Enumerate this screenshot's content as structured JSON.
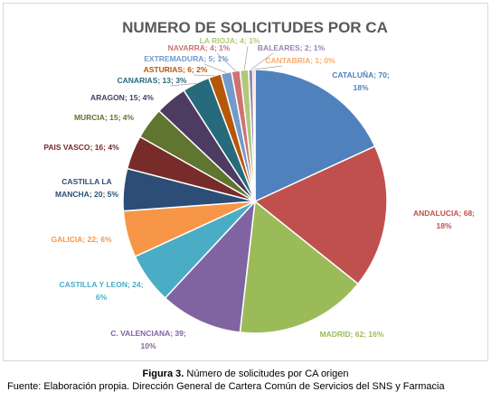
{
  "caption": {
    "figure_label": "Figura 3.",
    "figure_text": " Número de solicitudes por CA origen",
    "source": "Fuente: Elaboración propia. Dirección General de Cartera Común de Servicios del SNS y Farmacia"
  },
  "chart_data": {
    "type": "pie",
    "title": "NUMERO DE SOLICITUDES POR CA",
    "slices": [
      {
        "name": "CATALUÑA",
        "value": 70,
        "percent": "18%",
        "color": "#4F81BD"
      },
      {
        "name": "ANDALUCIA",
        "value": 68,
        "percent": "18%",
        "color": "#C0504D"
      },
      {
        "name": "MADRID",
        "value": 62,
        "percent": "16%",
        "color": "#9BBB59"
      },
      {
        "name": "C. VALENCIANA",
        "value": 39,
        "percent": "10%",
        "color": "#8064A2"
      },
      {
        "name": "CASTILLA Y LEON",
        "value": 24,
        "percent": "6%",
        "color": "#4BACC6"
      },
      {
        "name": "GALICIA",
        "value": 22,
        "percent": "6%",
        "color": "#F79646"
      },
      {
        "name": "CASTILLA LA MANCHA",
        "value": 20,
        "percent": "5%",
        "color": "#2C4D75"
      },
      {
        "name": "PAIS VASCO",
        "value": 16,
        "percent": "4%",
        "color": "#772C2A"
      },
      {
        "name": "MURCIA",
        "value": 15,
        "percent": "4%",
        "color": "#5F7530"
      },
      {
        "name": "ARAGON",
        "value": 15,
        "percent": "4%",
        "color": "#4D3B62"
      },
      {
        "name": "CANARIAS",
        "value": 13,
        "percent": "3%",
        "color": "#276A7C"
      },
      {
        "name": "ASTURIAS",
        "value": 6,
        "percent": "2%",
        "color": "#B65708"
      },
      {
        "name": "EXTREMADURA",
        "value": 5,
        "percent": "1%",
        "color": "#729ACA"
      },
      {
        "name": "NAVARRA",
        "value": 4,
        "percent": "1%",
        "color": "#CD7371"
      },
      {
        "name": "LA RIOJA",
        "value": 4,
        "percent": "1%",
        "color": "#AFC97A"
      },
      {
        "name": "BALEARES",
        "value": 2,
        "percent": "1%",
        "color": "#9983B5"
      },
      {
        "name": "CANTABRIA",
        "value": 1,
        "percent": "0%",
        "color": "#F9AB6B"
      }
    ]
  }
}
